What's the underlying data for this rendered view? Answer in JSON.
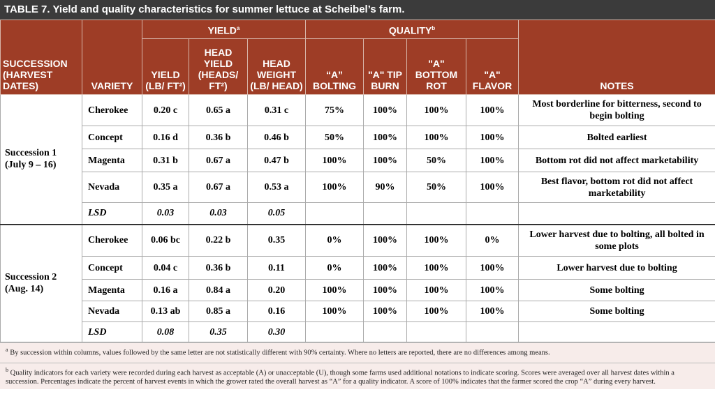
{
  "title": "TABLE 7. Yield and quality characteristics for summer lettuce at Scheibel’s farm.",
  "group_headers": [
    {
      "label": "YIELD",
      "note": "a"
    },
    {
      "label": "QUALITY",
      "note": "b"
    }
  ],
  "column_headers": [
    "SUCCESSION (HARVEST DATES)",
    "VARIETY",
    "YIELD (LB/ FT²)",
    "HEAD YIELD (HEADS/ FT²)",
    "HEAD WEIGHT (LB/ HEAD)",
    "“A” BOLTING",
    "\"A\" TIP BURN",
    "\"A\" BOTTOM ROT",
    "\"A\" FLAVOR",
    "NOTES"
  ],
  "groups": [
    {
      "succession": [
        "Succession 1",
        "(July 9 – 16)"
      ],
      "rows": [
        [
          "Cherokee",
          "0.20 c",
          "0.65 a",
          "0.31 c",
          "75%",
          "100%",
          "100%",
          "100%",
          "Most borderline for bitterness, second to begin bolting"
        ],
        [
          "Concept",
          "0.16 d",
          "0.36 b",
          "0.46 b",
          "50%",
          "100%",
          "100%",
          "100%",
          "Bolted earliest"
        ],
        [
          "Magenta",
          "0.31 b",
          "0.67 a",
          "0.47 b",
          "100%",
          "100%",
          "50%",
          "100%",
          "Bottom rot did not affect marketability"
        ],
        [
          "Nevada",
          "0.35 a",
          "0.67 a",
          "0.53 a",
          "100%",
          "90%",
          "50%",
          "100%",
          "Best flavor, bottom rot did not affect marketability"
        ]
      ],
      "lsd": [
        "LSD",
        "0.03",
        "0.03",
        "0.05"
      ]
    },
    {
      "succession": [
        "Succession 2",
        "(Aug. 14)"
      ],
      "rows": [
        [
          "Cherokee",
          "0.06 bc",
          "0.22 b",
          "0.35",
          "0%",
          "100%",
          "100%",
          "0%",
          "Lower harvest due to bolting, all bolted in some plots"
        ],
        [
          "Concept",
          "0.04 c",
          "0.36 b",
          "0.11",
          "0%",
          "100%",
          "100%",
          "100%",
          "Lower harvest due to bolting"
        ],
        [
          "Magenta",
          "0.16 a",
          "0.84 a",
          "0.20",
          "100%",
          "100%",
          "100%",
          "100%",
          "Some bolting"
        ],
        [
          "Nevada",
          "0.13 ab",
          "0.85 a",
          "0.16",
          "100%",
          "100%",
          "100%",
          "100%",
          "Some bolting"
        ]
      ],
      "lsd": [
        "LSD",
        "0.08",
        "0.35",
        "0.30"
      ]
    }
  ],
  "footnotes": [
    {
      "marker": "a",
      "text": "By succession within columns, values followed by the same letter are not statistically different with 90% certainty. Where no letters are reported, there are no differences among means."
    },
    {
      "marker": "b",
      "text": "Quality indicators for each variety were recorded during each harvest as acceptable (A) or unacceptable (U), though some farms used additional notations to indicate scoring.  Scores were averaged over all harvest dates within a succession. Percentages indicate the percent of harvest events in which the grower rated the overall harvest as “A” for a quality indicator. A score of 100% indicates that the farmer scored the crop “A” during every harvest."
    }
  ]
}
